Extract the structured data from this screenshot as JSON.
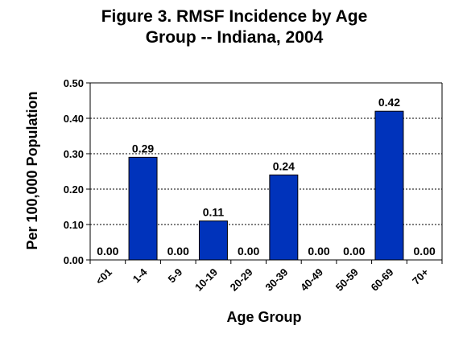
{
  "chart_data": {
    "type": "bar",
    "title_lines": [
      "Figure 3. RMSF Incidence by Age",
      "Group -- Indiana, 2004"
    ],
    "xlabel": "Age Group",
    "ylabel": "Per 100,000 Population",
    "categories": [
      "<01",
      "1-4",
      "5-9",
      "10-19",
      "20-29",
      "30-39",
      "40-49",
      "50-59",
      "60-69",
      "70+"
    ],
    "values": [
      0.0,
      0.29,
      0.0,
      0.11,
      0.0,
      0.24,
      0.0,
      0.0,
      0.42,
      0.0
    ],
    "data_labels": [
      "0.00",
      "0.29",
      "0.00",
      "0.11",
      "0.00",
      "0.24",
      "0.00",
      "0.00",
      "0.42",
      "0.00"
    ],
    "ylim": [
      0,
      0.5
    ],
    "yticks": [
      0,
      0.1,
      0.2,
      0.3,
      0.4,
      0.5
    ],
    "ytick_labels": [
      "0.00",
      "0.10",
      "0.20",
      "0.30",
      "0.40",
      "0.50"
    ],
    "grid": "horizontal dotted",
    "bar_color": "#0033bb",
    "legend": "none"
  }
}
